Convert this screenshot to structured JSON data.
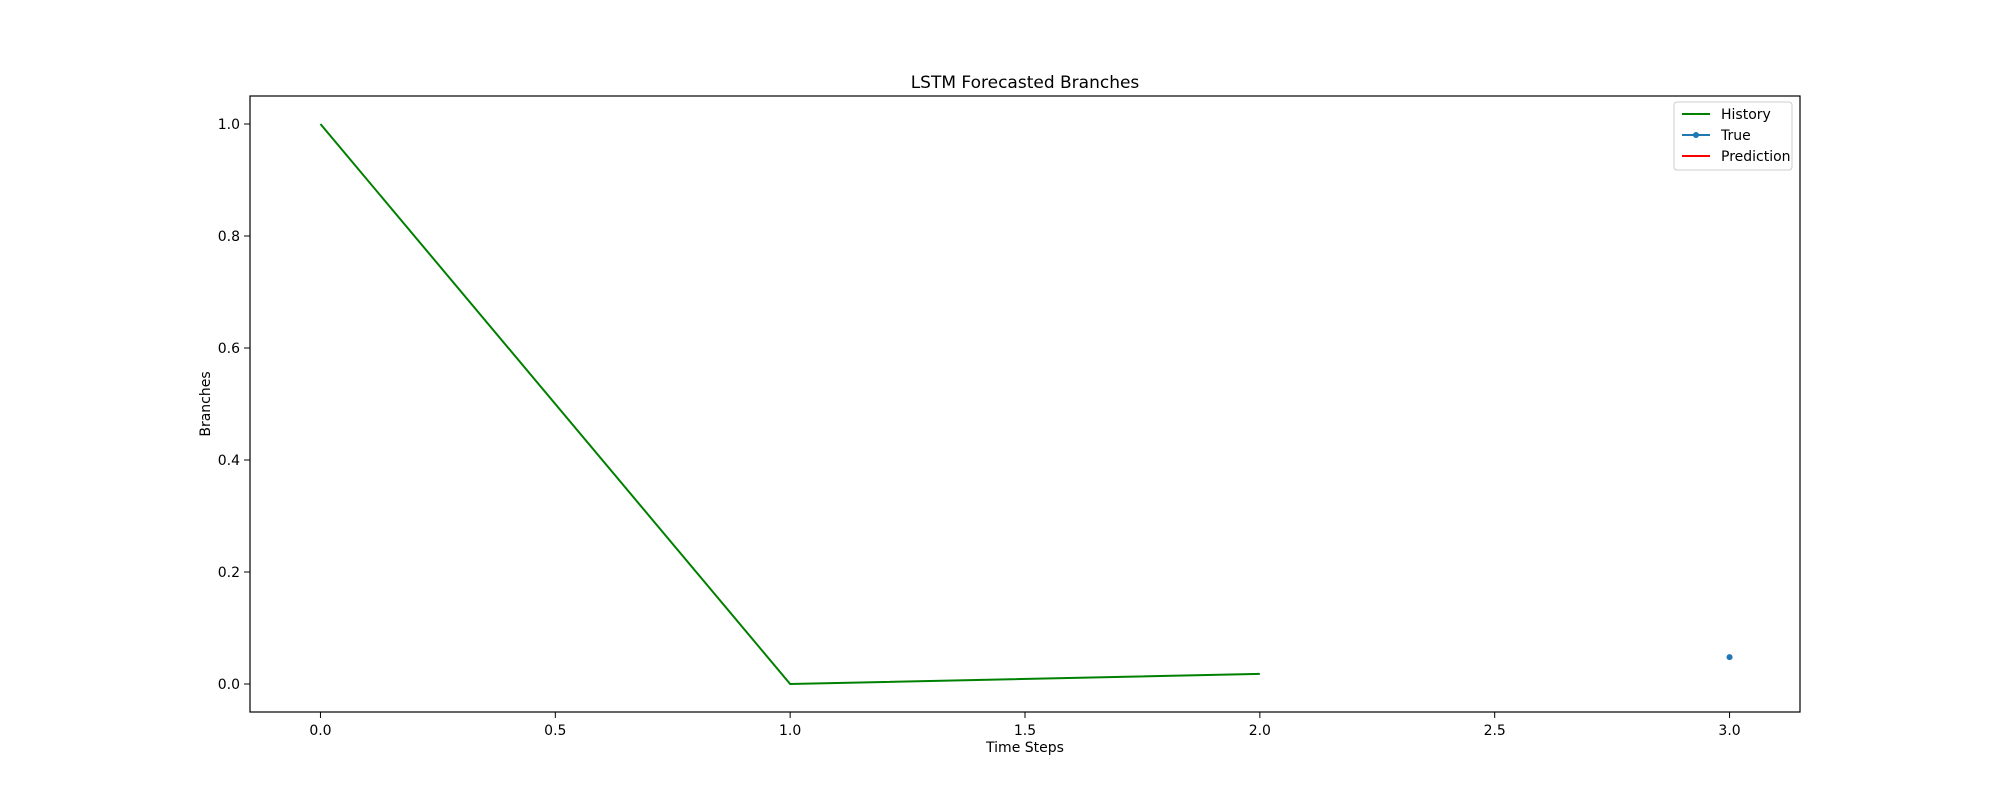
{
  "chart_data": {
    "type": "line",
    "title": "LSTM Forecasted Branches",
    "xlabel": "Time Steps",
    "ylabel": "Branches",
    "xlim": [
      -0.15,
      3.15
    ],
    "ylim": [
      -0.05,
      1.05
    ],
    "xticks": [
      "0.0",
      "0.5",
      "1.0",
      "1.5",
      "2.0",
      "2.5",
      "3.0"
    ],
    "yticks": [
      "0.0",
      "0.2",
      "0.4",
      "0.6",
      "0.8",
      "1.0"
    ],
    "grid": false,
    "legend_position": "top-right",
    "series": [
      {
        "name": "History",
        "color": "#008000",
        "marker": "none",
        "x": [
          0,
          1,
          2
        ],
        "y": [
          1.0,
          0.0,
          0.018
        ]
      },
      {
        "name": "True",
        "color": "#1f77b4",
        "marker": "dot",
        "x": [
          3
        ],
        "y": [
          0.048
        ]
      },
      {
        "name": "Prediction",
        "color": "#ff0000",
        "marker": "none",
        "x": [],
        "y": []
      }
    ]
  }
}
